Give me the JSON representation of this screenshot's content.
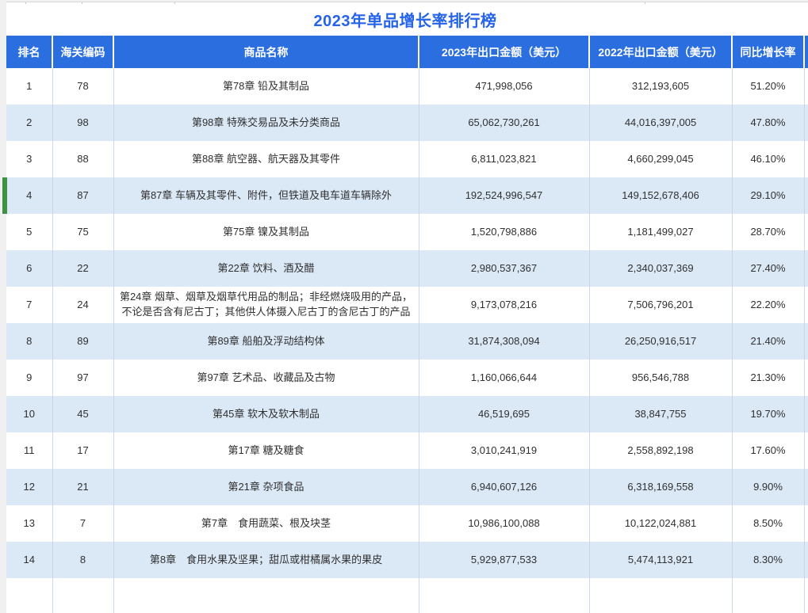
{
  "chart_data": {
    "type": "table",
    "title": "2023年单品增长率排行榜",
    "columns": [
      "排名",
      "海关编码",
      "商品名称",
      "2023年出口金额（美元）",
      "2022年出口金额（美元）",
      "同比增长率"
    ],
    "selected_rank": "4",
    "rows": [
      {
        "rank": "1",
        "hs_code": "78",
        "product": "第78章 铅及其制品",
        "amount_2023": "471,998,056",
        "amount_2022": "312,193,605",
        "growth": "51.20%"
      },
      {
        "rank": "2",
        "hs_code": "98",
        "product": "第98章 特殊交易品及未分类商品",
        "amount_2023": "65,062,730,261",
        "amount_2022": "44,016,397,005",
        "growth": "47.80%"
      },
      {
        "rank": "3",
        "hs_code": "88",
        "product": "第88章 航空器、航天器及其零件",
        "amount_2023": "6,811,023,821",
        "amount_2022": "4,660,299,045",
        "growth": "46.10%"
      },
      {
        "rank": "4",
        "hs_code": "87",
        "product": "第87章 车辆及其零件、附件，但铁道及电车道车辆除外",
        "amount_2023": "192,524,996,547",
        "amount_2022": "149,152,678,406",
        "growth": "29.10%"
      },
      {
        "rank": "5",
        "hs_code": "75",
        "product": "第75章 镍及其制品",
        "amount_2023": "1,520,798,886",
        "amount_2022": "1,181,499,027",
        "growth": "28.70%"
      },
      {
        "rank": "6",
        "hs_code": "22",
        "product": "第22章 饮料、酒及醋",
        "amount_2023": "2,980,537,367",
        "amount_2022": "2,340,037,369",
        "growth": "27.40%"
      },
      {
        "rank": "7",
        "hs_code": "24",
        "product": "第24章 烟草、烟草及烟草代用品的制品；非经燃烧吸用的产品，不论是否含有尼古丁；其他供人体摄入尼古丁的含尼古丁的产品",
        "amount_2023": "9,173,078,216",
        "amount_2022": "7,506,796,201",
        "growth": "22.20%"
      },
      {
        "rank": "8",
        "hs_code": "89",
        "product": "第89章 船舶及浮动结构体",
        "amount_2023": "31,874,308,094",
        "amount_2022": "26,250,916,517",
        "growth": "21.40%"
      },
      {
        "rank": "9",
        "hs_code": "97",
        "product": "第97章 艺术品、收藏品及古物",
        "amount_2023": "1,160,066,644",
        "amount_2022": "956,546,788",
        "growth": "21.30%"
      },
      {
        "rank": "10",
        "hs_code": "45",
        "product": "第45章 软木及软木制品",
        "amount_2023": "46,519,695",
        "amount_2022": "38,847,755",
        "growth": "19.70%"
      },
      {
        "rank": "11",
        "hs_code": "17",
        "product": "第17章 糖及糖食",
        "amount_2023": "3,010,241,919",
        "amount_2022": "2,558,892,198",
        "growth": "17.60%"
      },
      {
        "rank": "12",
        "hs_code": "21",
        "product": "第21章 杂项食品",
        "amount_2023": "6,940,607,126",
        "amount_2022": "6,318,169,558",
        "growth": "9.90%"
      },
      {
        "rank": "13",
        "hs_code": "7",
        "product": "第7章　食用蔬菜、根及块茎",
        "amount_2023": "10,986,100,088",
        "amount_2022": "10,122,024,881",
        "growth": "8.50%"
      },
      {
        "rank": "14",
        "hs_code": "8",
        "product": "第8章　食用水果及坚果；甜瓜或柑橘属水果的果皮",
        "amount_2023": "5,929,877,533",
        "amount_2022": "5,474,113,921",
        "growth": "8.30%"
      }
    ]
  },
  "colors": {
    "header_bg": "#2a6edf",
    "title_text": "#2563e8",
    "alt_row": "#dbe8f6",
    "selected_indicator": "#3e9142"
  }
}
